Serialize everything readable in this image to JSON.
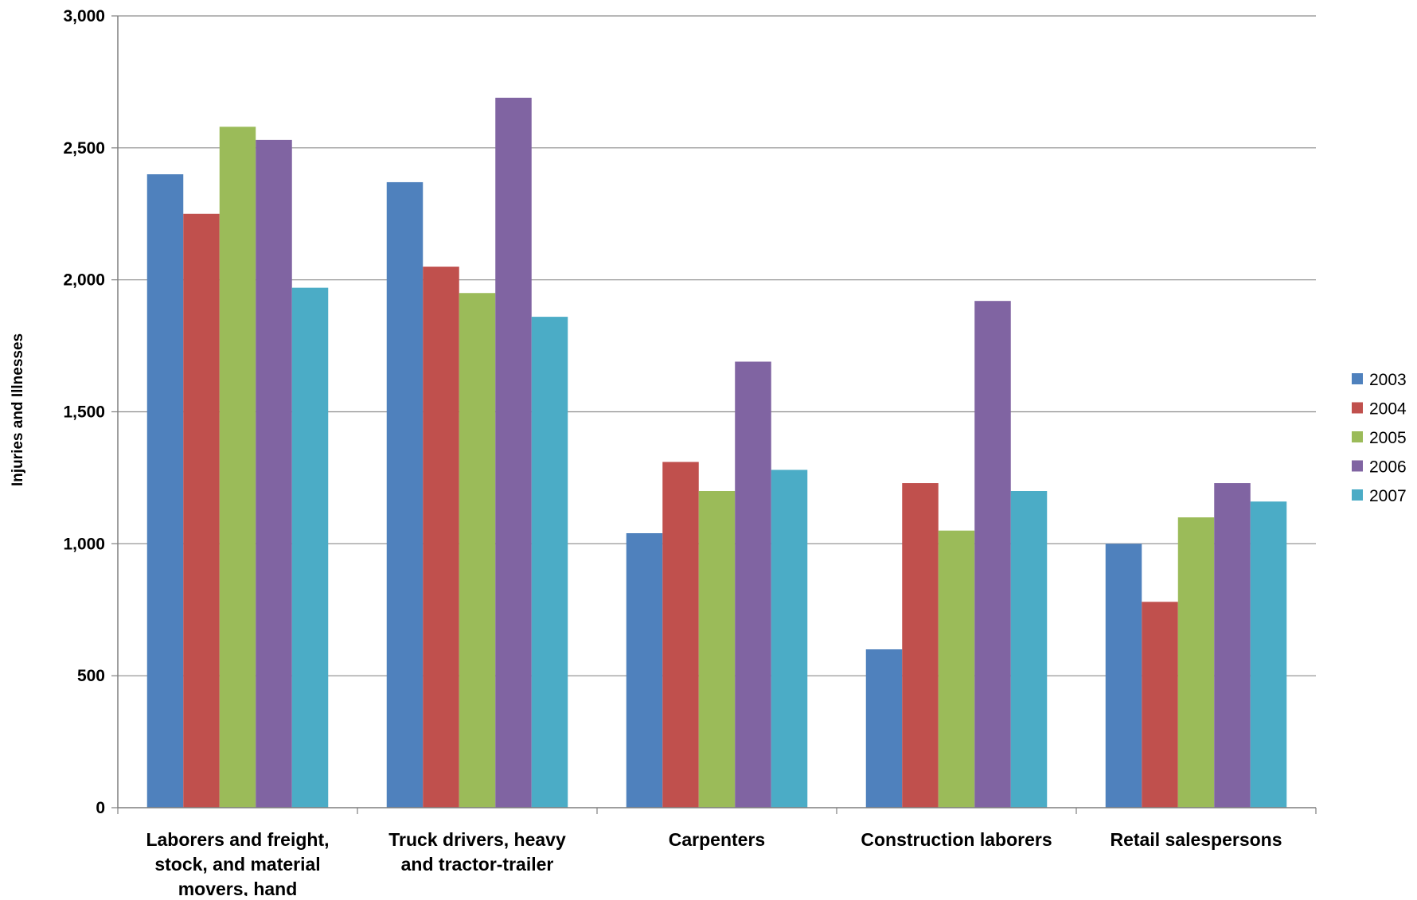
{
  "chart_data": {
    "type": "bar",
    "title": "",
    "xlabel": "",
    "ylabel": "Injuries and Illnesses",
    "ylim": [
      0,
      3000
    ],
    "yticks": [
      0,
      500,
      1000,
      1500,
      2000,
      2500,
      3000
    ],
    "ytick_labels": [
      "0",
      "500",
      "1,000",
      "1,500",
      "2,000",
      "2,500",
      "3,000"
    ],
    "grid": true,
    "legend_position": "right",
    "categories": [
      [
        "Laborers and freight,",
        "stock, and material",
        "movers, hand"
      ],
      [
        "Truck drivers, heavy",
        "and tractor-trailer"
      ],
      [
        "Carpenters"
      ],
      [
        "Construction laborers"
      ],
      [
        "Retail salespersons"
      ]
    ],
    "series": [
      {
        "name": "2003",
        "color": "#4F81BD",
        "values": [
          2400,
          2370,
          1040,
          600,
          1000
        ]
      },
      {
        "name": "2004",
        "color": "#C0504D",
        "values": [
          2250,
          2050,
          1310,
          1230,
          780
        ]
      },
      {
        "name": "2005",
        "color": "#9BBB59",
        "values": [
          2580,
          1950,
          1200,
          1050,
          1100
        ]
      },
      {
        "name": "2006",
        "color": "#8064A2",
        "values": [
          2530,
          2690,
          1690,
          1920,
          1230
        ]
      },
      {
        "name": "2007",
        "color": "#4BACC6",
        "values": [
          1970,
          1860,
          1280,
          1200,
          1160
        ]
      }
    ]
  }
}
